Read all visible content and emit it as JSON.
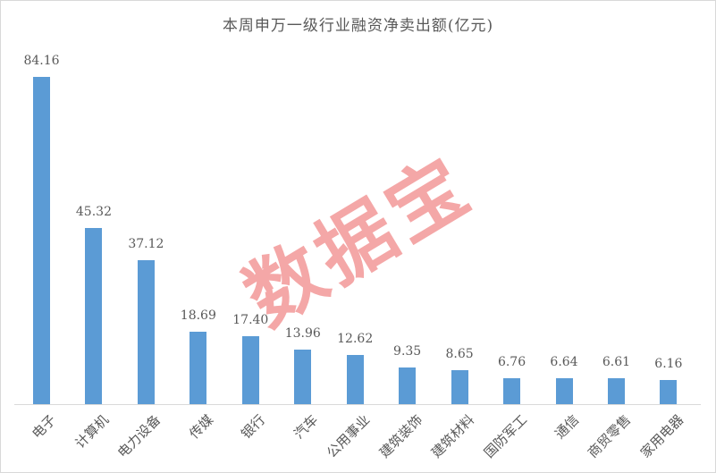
{
  "title": "本周申万一级行业融资净卖出额(亿元)",
  "watermark": {
    "text": "数据宝",
    "color": "#e84848"
  },
  "colors": {
    "bar": "#5b9bd5",
    "text": "#595959",
    "axis_line": "#d9d9d9",
    "background": "#ffffff"
  },
  "chart_data": {
    "type": "bar",
    "title": "本周申万一级行业融资净卖出额(亿元)",
    "categories": [
      "电子",
      "计算机",
      "电力设备",
      "传媒",
      "银行",
      "汽车",
      "公用事业",
      "建筑装饰",
      "建筑材料",
      "国防军工",
      "通信",
      "商贸零售",
      "家用电器"
    ],
    "values": [
      84.16,
      45.32,
      37.12,
      18.69,
      17.4,
      13.96,
      12.62,
      9.35,
      8.65,
      6.76,
      6.64,
      6.61,
      6.16
    ],
    "value_labels": [
      "84.16",
      "45.32",
      "37.12",
      "18.69",
      "17.40",
      "13.96",
      "12.62",
      "9.35",
      "8.65",
      "6.76",
      "6.64",
      "6.61",
      "6.16"
    ],
    "xlabel": "",
    "ylabel": "",
    "ylim": [
      0,
      90
    ],
    "grid": false,
    "legend": null,
    "data_labels": true,
    "tick_label_rotation_deg": 45
  }
}
